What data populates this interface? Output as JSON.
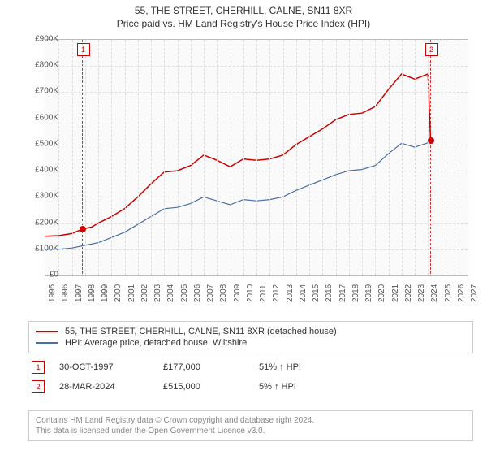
{
  "title": "55, THE STREET, CHERHILL, CALNE, SN11 8XR",
  "subtitle": "Price paid vs. HM Land Registry's House Price Index (HPI)",
  "chart": {
    "type": "line",
    "background_color": "#fafafa",
    "grid_color": "#dddddd",
    "border_color": "#bbbbbb",
    "x_start": 1995,
    "x_end": 2027,
    "x_tick_step": 1,
    "ylim": [
      0,
      900
    ],
    "ytick_step": 100,
    "y_prefix": "£",
    "y_suffix": "K",
    "series": [
      {
        "name": "55, THE STREET, CHERHILL, CALNE, SN11 8XR (detached house)",
        "color": "#cc0000",
        "width": 1.5,
        "points": [
          [
            1995,
            150
          ],
          [
            1996,
            152
          ],
          [
            1997,
            160
          ],
          [
            1997.8,
            177
          ],
          [
            1998.5,
            185
          ],
          [
            1999,
            200
          ],
          [
            2000,
            225
          ],
          [
            2001,
            255
          ],
          [
            2002,
            300
          ],
          [
            2003,
            350
          ],
          [
            2004,
            395
          ],
          [
            2005,
            400
          ],
          [
            2006,
            420
          ],
          [
            2007,
            460
          ],
          [
            2008,
            440
          ],
          [
            2009,
            415
          ],
          [
            2010,
            445
          ],
          [
            2011,
            440
          ],
          [
            2012,
            445
          ],
          [
            2013,
            460
          ],
          [
            2014,
            500
          ],
          [
            2015,
            530
          ],
          [
            2016,
            560
          ],
          [
            2017,
            595
          ],
          [
            2018,
            615
          ],
          [
            2019,
            620
          ],
          [
            2020,
            645
          ],
          [
            2021,
            710
          ],
          [
            2022,
            770
          ],
          [
            2023,
            750
          ],
          [
            2024,
            770
          ],
          [
            2024.2,
            515
          ]
        ]
      },
      {
        "name": "HPI: Average price, detached house, Wiltshire",
        "color": "#4a6fa5",
        "width": 1.2,
        "points": [
          [
            1995,
            100
          ],
          [
            1996,
            100
          ],
          [
            1997,
            105
          ],
          [
            1998,
            115
          ],
          [
            1999,
            125
          ],
          [
            2000,
            145
          ],
          [
            2001,
            165
          ],
          [
            2002,
            195
          ],
          [
            2003,
            225
          ],
          [
            2004,
            255
          ],
          [
            2005,
            260
          ],
          [
            2006,
            275
          ],
          [
            2007,
            300
          ],
          [
            2008,
            285
          ],
          [
            2009,
            270
          ],
          [
            2010,
            290
          ],
          [
            2011,
            285
          ],
          [
            2012,
            290
          ],
          [
            2013,
            300
          ],
          [
            2014,
            325
          ],
          [
            2015,
            345
          ],
          [
            2016,
            365
          ],
          [
            2017,
            385
          ],
          [
            2018,
            400
          ],
          [
            2019,
            405
          ],
          [
            2020,
            420
          ],
          [
            2021,
            465
          ],
          [
            2022,
            505
          ],
          [
            2023,
            490
          ],
          [
            2024.2,
            510
          ]
        ]
      }
    ],
    "sale_points": [
      {
        "num": "1",
        "x": 1997.8,
        "y": 177,
        "color": "#cc0000"
      },
      {
        "num": "2",
        "x": 2024.2,
        "y": 515,
        "color": "#cc0000"
      }
    ]
  },
  "sales": [
    {
      "num": "1",
      "date": "30-OCT-1997",
      "price": "£177,000",
      "hpi": "51% ↑ HPI"
    },
    {
      "num": "2",
      "date": "28-MAR-2024",
      "price": "£515,000",
      "hpi": "5% ↑ HPI"
    }
  ],
  "footer_line1": "Contains HM Land Registry data © Crown copyright and database right 2024.",
  "footer_line2": "This data is licensed under the Open Government Licence v3.0."
}
